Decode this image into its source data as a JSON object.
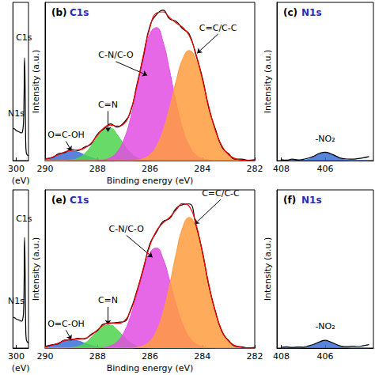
{
  "chart_data": [
    {
      "type": "line",
      "xlabel": "(eV)",
      "x": [
        306,
        303,
        300,
        297,
        294,
        291,
        289,
        287,
        286,
        285,
        284,
        283,
        282,
        280,
        278
      ],
      "xlim": [
        306,
        278
      ],
      "xticks": [
        300
      ],
      "ylim": [
        0,
        100
      ],
      "tick_labels": "x",
      "grid": false,
      "series": [
        {
          "type": "line",
          "color": "#000000",
          "values": [
            20.5,
            20,
            19,
            18.5,
            18,
            17.5,
            18,
            24,
            40,
            65,
            45,
            12,
            5,
            3.5,
            3
          ]
        }
      ],
      "annotations": [
        {
          "text": "C1s",
          "x": 286,
          "y": 78
        },
        {
          "text": "N1s",
          "x": 300,
          "y": 30
        }
      ]
    },
    {
      "type": "line",
      "title": "(b)",
      "subtitle": "C1s",
      "xlabel": "Binding energy (eV)",
      "ylabel": "Intensity (a.u.)",
      "x": [
        290,
        289.75,
        289.5,
        289.25,
        289,
        288.75,
        288.5,
        288.25,
        288,
        287.75,
        287.5,
        287.25,
        287,
        286.75,
        286.5,
        286.25,
        286,
        285.75,
        285.5,
        285.25,
        285,
        284.75,
        284.5,
        284.25,
        284,
        283.75,
        283.5,
        283.25,
        283,
        282.75,
        282.5,
        282.25,
        282
      ],
      "xlim": [
        290,
        282
      ],
      "xticks": [
        290,
        288,
        286,
        284,
        282
      ],
      "ylim": [
        0,
        115
      ],
      "tick_labels": "x",
      "grid": false,
      "series": [
        {
          "type": "area",
          "color": "#3d6fd6",
          "values": [
            0.9,
            2.3,
            4.2,
            6.2,
            7,
            6.2,
            4.2,
            2.3,
            0.9,
            0.3,
            0.1,
            0,
            0,
            0,
            0,
            0,
            0,
            0,
            0,
            0,
            0,
            0,
            0,
            0,
            0,
            0,
            0,
            0,
            0,
            0,
            0,
            0,
            0
          ]
        },
        {
          "type": "area",
          "color": "#4cd44c",
          "values": [
            0,
            0,
            0,
            0.1,
            0.5,
            1.7,
            4.8,
            10.3,
            17.4,
            22.9,
            23.5,
            18.8,
            11.7,
            5.7,
            2.1,
            0.6,
            0.1,
            0,
            0,
            0,
            0,
            0,
            0,
            0,
            0,
            0,
            0,
            0,
            0,
            0,
            0,
            0,
            0
          ]
        },
        {
          "type": "area",
          "color": "#e24de2",
          "values": [
            0,
            0,
            0,
            0,
            0,
            0,
            0,
            0,
            0.2,
            0.7,
            2.2,
            6.3,
            14.9,
            30.0,
            51.3,
            74.6,
            92.1,
            96.7,
            86.3,
            65.5,
            42.2,
            23.1,
            10.8,
            4.3,
            1.5,
            0.4,
            0,
            0,
            0,
            0,
            0,
            0,
            0
          ]
        },
        {
          "type": "area",
          "color": "#ff9c3f",
          "values": [
            0,
            0,
            0,
            0,
            0,
            0,
            0,
            0,
            0,
            0,
            0,
            0,
            0,
            0,
            0.4,
            1.5,
            4.3,
            10.5,
            21.8,
            38.5,
            57.8,
            73.8,
            80,
            73.8,
            57.8,
            38.5,
            21.8,
            10.5,
            4.3,
            1.5,
            0.4,
            0,
            0
          ]
        },
        {
          "type": "line",
          "color": "#000000",
          "values": [
            1.5,
            2.0,
            4.9,
            5.8,
            8.2,
            7.3,
            9.8,
            11.9,
            19.2,
            23.1,
            26.7,
            24.3,
            27.5,
            34.8,
            55.0,
            75.6,
            97.8,
            106.1,
            109.3,
            103.0,
            101.2,
            95.8,
            92.0,
            77.0,
            60.4,
            38.0,
            22.9,
            9.8,
            5.0,
            1.0,
            1.1,
            0.3,
            0.6
          ]
        },
        {
          "type": "line",
          "color": "#ff0000",
          "values": [
            0.9,
            2.3,
            4.2,
            6.3,
            7.5,
            7.9,
            9.0,
            12.6,
            18.5,
            23.9,
            25.8,
            25.1,
            26.6,
            35.7,
            53.8,
            76.7,
            96.5,
            107.2,
            108.1,
            104.0,
            100.0,
            96.9,
            90.8,
            78.1,
            59.3,
            38.9,
            21.8,
            10.5,
            4.3,
            1.5,
            0.4,
            0,
            0
          ]
        }
      ],
      "annotations": [
        {
          "text": "C=C/C-C",
          "x": 283.4,
          "y": 92,
          "to": [
            284.2,
            78
          ]
        },
        {
          "text": "C-N/C-O",
          "x": 287.3,
          "y": 72,
          "to": [
            286.1,
            62
          ]
        },
        {
          "text": "C=N",
          "x": 287.6,
          "y": 36,
          "to": [
            287.6,
            21
          ]
        },
        {
          "text": "O=C-OH",
          "x": 289.2,
          "y": 14,
          "to": [
            289.0,
            7
          ]
        }
      ]
    },
    {
      "type": "line",
      "title": "(c)",
      "subtitle": "N1s",
      "ylabel": "Intensity (a.u.)",
      "x": [
        408,
        407.75,
        407.5,
        407.25,
        407,
        406.75,
        406.5,
        406.25,
        406,
        405.75,
        405.5,
        405.25,
        405,
        404.75,
        404.5,
        404.25,
        404
      ],
      "xlim": [
        408.2,
        403.8
      ],
      "xticks": [
        408,
        406
      ],
      "ylim": [
        0,
        100
      ],
      "tick_labels": "x",
      "grid": false,
      "series": [
        {
          "type": "area",
          "color": "#3d6fd6",
          "values": [
            0,
            0,
            0,
            0,
            0.2,
            0.9,
            2.3,
            4.1,
            5,
            4.1,
            2.3,
            0.9,
            0.2,
            0,
            0,
            0,
            0
          ]
        },
        {
          "type": "line",
          "color": "#000000",
          "values": [
            0.6,
            0.3,
            0.9,
            0.4,
            0.8,
            1.6,
            2.9,
            4.6,
            5.3,
            4.4,
            2.8,
            1.4,
            1.0,
            0.9,
            1.3,
            1.8,
            2.6
          ]
        }
      ],
      "annotations": [
        {
          "text": "-NO₂",
          "x": 406,
          "y": 14
        }
      ]
    },
    {
      "type": "line",
      "xlabel": "(eV)",
      "x": [
        306,
        303,
        300,
        297,
        294,
        291,
        289,
        287,
        286,
        285,
        284,
        283,
        282,
        280,
        278
      ],
      "xlim": [
        306,
        278
      ],
      "xticks": [
        300
      ],
      "ylim": [
        0,
        100
      ],
      "tick_labels": "x",
      "grid": false,
      "series": [
        {
          "type": "line",
          "color": "#000000",
          "values": [
            19.5,
            19.2,
            18.4,
            18,
            17.6,
            17,
            17.4,
            22,
            37,
            70,
            48,
            13,
            5.5,
            3.8,
            3.2
          ]
        }
      ],
      "annotations": [
        {
          "text": "C1s",
          "x": 286,
          "y": 82
        },
        {
          "text": "N1s",
          "x": 300,
          "y": 30
        }
      ]
    },
    {
      "type": "line",
      "title": "(e)",
      "subtitle": "C1s",
      "xlabel": "Binding energy (eV)",
      "ylabel": "Intensity (a.u.)",
      "x": [
        290,
        289.75,
        289.5,
        289.25,
        289,
        288.75,
        288.5,
        288.25,
        288,
        287.75,
        287.5,
        287.25,
        287,
        286.75,
        286.5,
        286.25,
        286,
        285.75,
        285.5,
        285.25,
        285,
        284.75,
        284.5,
        284.25,
        284,
        283.75,
        283.5,
        283.25,
        283,
        282.75,
        282.5,
        282.25,
        282
      ],
      "xlim": [
        290,
        282
      ],
      "xticks": [
        290,
        288,
        286,
        284,
        282
      ],
      "ylim": [
        0,
        115
      ],
      "tick_labels": "x",
      "grid": false,
      "series": [
        {
          "type": "area",
          "color": "#3d6fd6",
          "values": [
            0.8,
            2.0,
            3.6,
            5.3,
            6.0,
            5.3,
            3.6,
            2.0,
            0.8,
            0.3,
            0.1,
            0,
            0,
            0,
            0,
            0,
            0,
            0,
            0,
            0,
            0,
            0,
            0,
            0,
            0,
            0,
            0,
            0,
            0,
            0,
            0,
            0,
            0
          ]
        },
        {
          "type": "area",
          "color": "#4cd44c",
          "values": [
            0,
            0,
            0,
            0.1,
            0.4,
            1.2,
            3.4,
            7.3,
            12.3,
            16.2,
            16.6,
            13.3,
            8.3,
            4.0,
            1.5,
            0.4,
            0.1,
            0,
            0,
            0,
            0,
            0,
            0,
            0,
            0,
            0,
            0,
            0,
            0,
            0,
            0,
            0,
            0
          ]
        },
        {
          "type": "area",
          "color": "#e24de2",
          "values": [
            0,
            0,
            0,
            0,
            0,
            0,
            0,
            0,
            0.2,
            0.5,
            1.7,
            4.7,
            11.2,
            22.6,
            38.6,
            56.1,
            69.3,
            72.8,
            65.0,
            49.3,
            31.8,
            17.4,
            8.1,
            3.2,
            1.1,
            0.3,
            0,
            0,
            0,
            0,
            0,
            0,
            0
          ]
        },
        {
          "type": "area",
          "color": "#ff9c3f",
          "values": [
            0,
            0,
            0,
            0,
            0,
            0,
            0,
            0,
            0,
            0,
            0,
            0,
            0,
            0,
            0.5,
            1.8,
            5.1,
            12.5,
            25.9,
            45.7,
            68.6,
            87.6,
            95.0,
            87.6,
            68.6,
            45.7,
            25.9,
            12.5,
            5.1,
            1.8,
            0.5,
            0,
            0
          ]
        },
        {
          "type": "line",
          "color": "#000000",
          "values": [
            1.2,
            2.4,
            3.1,
            5.9,
            6.0,
            7.1,
            6.6,
            9.9,
            12.8,
            17.6,
            18.0,
            18.7,
            19.1,
            27.3,
            41.5,
            57.6,
            75.8,
            84.2,
            92.0,
            94.1,
            101.5,
            104.2,
            104.8,
            89.9,
            70.5,
            45.2,
            26.8,
            11.9,
            5.6,
            1.4,
            0.9,
            0.2,
            0.5
          ]
        },
        {
          "type": "line",
          "color": "#ff0000",
          "values": [
            0.8,
            2.0,
            3.6,
            5.4,
            6.4,
            6.5,
            7.0,
            9.3,
            13.3,
            17.0,
            18.4,
            18.0,
            19.5,
            26.6,
            40.6,
            58.3,
            74.5,
            85.3,
            90.9,
            95.0,
            100.4,
            105.0,
            103.1,
            90.8,
            69.7,
            46.0,
            25.9,
            12.5,
            5.1,
            1.8,
            0.5,
            0,
            0
          ]
        }
      ],
      "annotations": [
        {
          "text": "C=C/C-C",
          "x": 283.3,
          "y": 108,
          "to": [
            284.3,
            90
          ]
        },
        {
          "text": "C-N/C-O",
          "x": 286.9,
          "y": 82,
          "to": [
            285.9,
            66
          ]
        },
        {
          "text": "C=N",
          "x": 287.6,
          "y": 30,
          "to": [
            287.6,
            17
          ]
        },
        {
          "text": "O=C-OH",
          "x": 289.2,
          "y": 13,
          "to": [
            289.0,
            6
          ]
        }
      ]
    },
    {
      "type": "line",
      "title": "(f)",
      "subtitle": "N1s",
      "ylabel": "Intensity (a.u.)",
      "x": [
        408,
        407.75,
        407.5,
        407.25,
        407,
        406.75,
        406.5,
        406.25,
        406,
        405.75,
        405.5,
        405.25,
        405,
        404.75,
        404.5,
        404.25,
        404
      ],
      "xlim": [
        408.2,
        403.8
      ],
      "xticks": [
        408,
        406
      ],
      "ylim": [
        0,
        100
      ],
      "tick_labels": "x",
      "grid": false,
      "series": [
        {
          "type": "area",
          "color": "#3d6fd6",
          "values": [
            0,
            0,
            0,
            0,
            0.2,
            0.8,
            2.1,
            3.7,
            4.5,
            3.7,
            2.1,
            0.8,
            0.2,
            0,
            0,
            0,
            0
          ]
        },
        {
          "type": "line",
          "color": "#000000",
          "values": [
            0.5,
            0.8,
            0.4,
            0.7,
            0.6,
            1.4,
            2.5,
            4.0,
            4.9,
            3.9,
            2.4,
            1.2,
            0.9,
            1.2,
            1.0,
            1.6,
            2.2
          ]
        }
      ],
      "annotations": [
        {
          "text": "-NO₂",
          "x": 406,
          "y": 14
        }
      ]
    }
  ]
}
